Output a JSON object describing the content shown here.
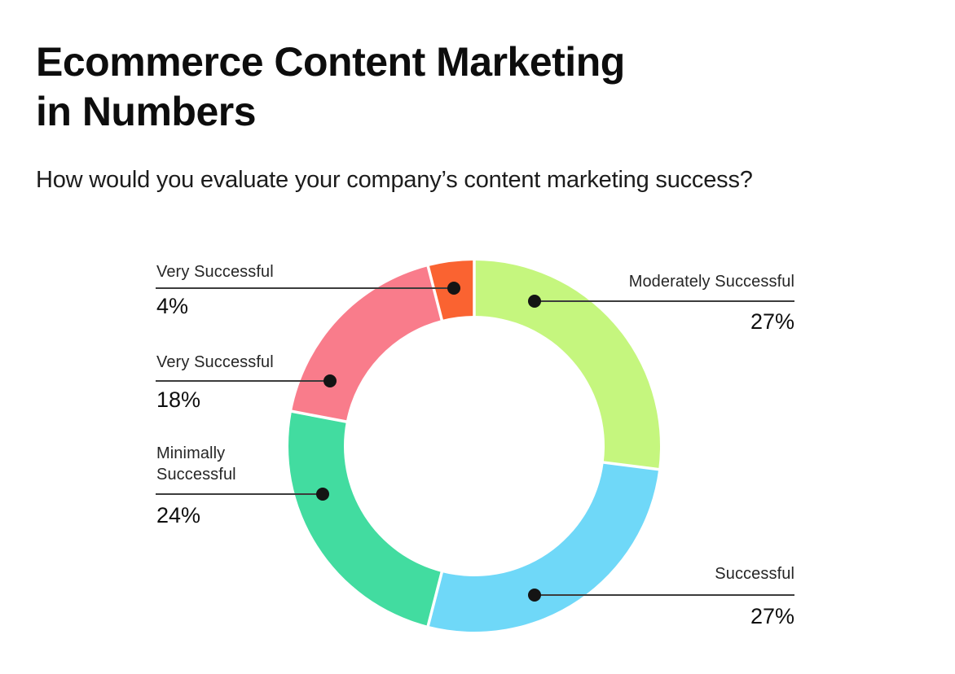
{
  "page": {
    "title_line1": "Ecommerce Content Marketing",
    "title_line2": "in Numbers",
    "subtitle": "How would you evaluate your company’s content marketing success?",
    "background_color": "#FFFFFF"
  },
  "chart_data": {
    "type": "pie",
    "subtype": "donut",
    "title": "How would you evaluate your company’s content marketing success?",
    "unit": "%",
    "total": 100,
    "direction": "clockwise",
    "start_angle_deg_from_top": 0,
    "legend_position": "callouts",
    "leader_line_color": "#3C3C3C",
    "dot_color": "#141414",
    "segments": [
      {
        "label": "Moderately Successful",
        "value": 27,
        "pct": "27%",
        "color": "#C5F67E",
        "callout_side": "right"
      },
      {
        "label": "Successful",
        "value": 27,
        "pct": "27%",
        "color": "#6FD8F8",
        "callout_side": "right"
      },
      {
        "label": "Minimally Successful",
        "value": 24,
        "pct": "24%",
        "color": "#42DCA0",
        "callout_side": "left"
      },
      {
        "label": "Very Successful",
        "value": 18,
        "pct": "18%",
        "color": "#F97C8B",
        "callout_side": "left"
      },
      {
        "label": "Very Successful",
        "value": 4,
        "pct": "4%",
        "color": "#FA6331",
        "callout_side": "left"
      }
    ]
  }
}
